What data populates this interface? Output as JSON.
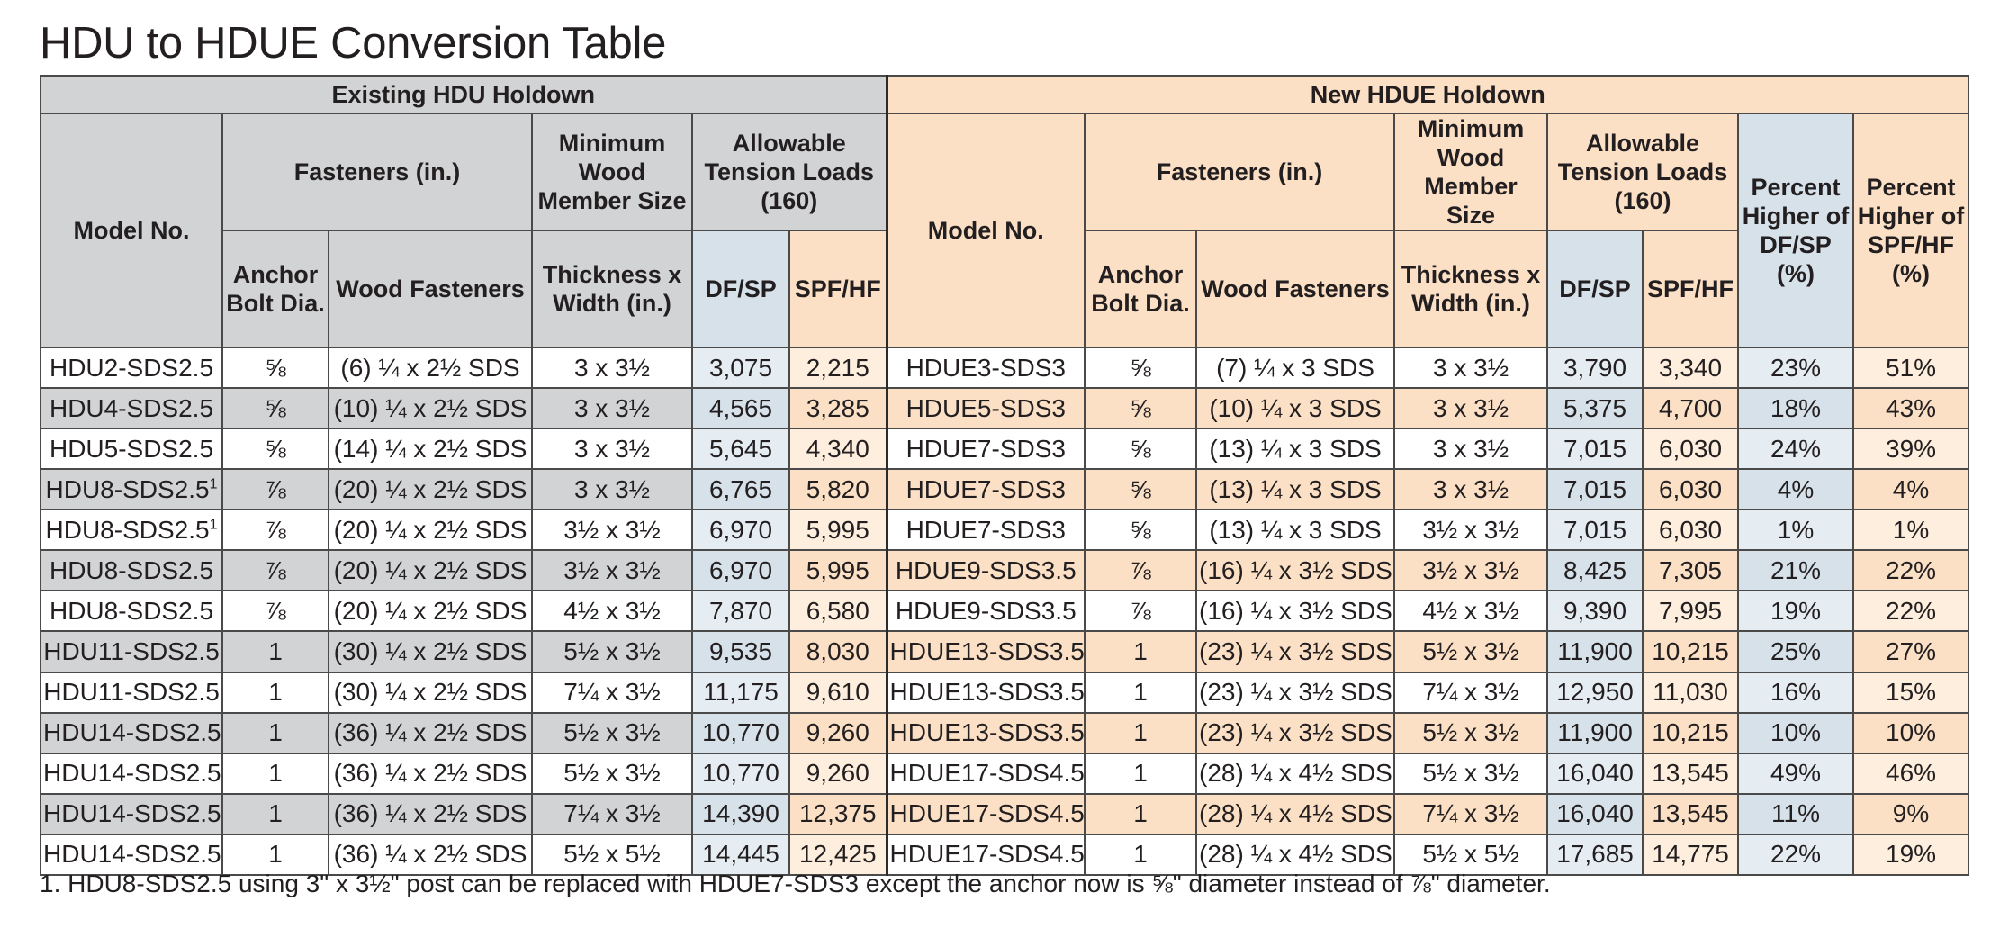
{
  "title": "HDU to HDUE Conversion Table",
  "groups": {
    "existing": "Existing HDU Holdown",
    "new": "New HDUE Holdown"
  },
  "headers": {
    "model_no": "Model No.",
    "fasteners": "Fasteners (in.)",
    "anchor_bolt": "Anchor Bolt Dia.",
    "wood_fasteners": "Wood Fasteners",
    "min_wood_top": "Minimum Wood Member Size",
    "min_wood_bottom": "Thickness x Width (in.)",
    "allowable": "Allowable Tension Loads (160)",
    "dfsp": "DF/SP",
    "spfhf": "SPF/HF",
    "pct_dfsp": "Percent Higher of DF/SP (%)",
    "pct_spfhf": "Percent Higher of SPF/HF (%)"
  },
  "rows": [
    {
      "hdu": "HDU2-SDS2.5",
      "sup": "",
      "bolt": "⅝",
      "fast": "(6) ¼ x 2½ SDS",
      "size": "3 x 3½",
      "df": "3,075",
      "spf": "2,215",
      "hdue": "HDUE3-SDS3",
      "nbolt": "⅝",
      "nfast": "(7) ¼ x 3 SDS",
      "nsize": "3 x 3½",
      "ndf": "3,790",
      "nspf": "3,340",
      "pdf": "23%",
      "pspf": "51%"
    },
    {
      "hdu": "HDU4-SDS2.5",
      "sup": "",
      "bolt": "⅝",
      "fast": "(10) ¼ x 2½ SDS",
      "size": "3 x 3½",
      "df": "4,565",
      "spf": "3,285",
      "hdue": "HDUE5-SDS3",
      "nbolt": "⅝",
      "nfast": "(10) ¼ x 3 SDS",
      "nsize": "3 x 3½",
      "ndf": "5,375",
      "nspf": "4,700",
      "pdf": "18%",
      "pspf": "43%"
    },
    {
      "hdu": "HDU5-SDS2.5",
      "sup": "",
      "bolt": "⅝",
      "fast": "(14) ¼ x 2½ SDS",
      "size": "3 x 3½",
      "df": "5,645",
      "spf": "4,340",
      "hdue": "HDUE7-SDS3",
      "nbolt": "⅝",
      "nfast": "(13) ¼ x 3 SDS",
      "nsize": "3 x 3½",
      "ndf": "7,015",
      "nspf": "6,030",
      "pdf": "24%",
      "pspf": "39%"
    },
    {
      "hdu": "HDU8-SDS2.5",
      "sup": "1",
      "bolt": "⅞",
      "fast": "(20) ¼ x 2½ SDS",
      "size": "3 x 3½",
      "df": "6,765",
      "spf": "5,820",
      "hdue": "HDUE7-SDS3",
      "nbolt": "⅝",
      "nfast": "(13) ¼ x 3 SDS",
      "nsize": "3 x 3½",
      "ndf": "7,015",
      "nspf": "6,030",
      "pdf": "4%",
      "pspf": "4%"
    },
    {
      "hdu": "HDU8-SDS2.5",
      "sup": "1",
      "bolt": "⅞",
      "fast": "(20) ¼ x 2½ SDS",
      "size": "3½ x 3½",
      "df": "6,970",
      "spf": "5,995",
      "hdue": "HDUE7-SDS3",
      "nbolt": "⅝",
      "nfast": "(13) ¼ x 3 SDS",
      "nsize": "3½ x 3½",
      "ndf": "7,015",
      "nspf": "6,030",
      "pdf": "1%",
      "pspf": "1%"
    },
    {
      "hdu": "HDU8-SDS2.5",
      "sup": "",
      "bolt": "⅞",
      "fast": "(20) ¼ x 2½ SDS",
      "size": "3½ x 3½",
      "df": "6,970",
      "spf": "5,995",
      "hdue": "HDUE9-SDS3.5",
      "nbolt": "⅞",
      "nfast": "(16) ¼ x 3½ SDS",
      "nsize": "3½ x 3½",
      "ndf": "8,425",
      "nspf": "7,305",
      "pdf": "21%",
      "pspf": "22%"
    },
    {
      "hdu": "HDU8-SDS2.5",
      "sup": "",
      "bolt": "⅞",
      "fast": "(20) ¼ x 2½ SDS",
      "size": "4½ x 3½",
      "df": "7,870",
      "spf": "6,580",
      "hdue": "HDUE9-SDS3.5",
      "nbolt": "⅞",
      "nfast": "(16) ¼ x 3½ SDS",
      "nsize": "4½ x 3½",
      "ndf": "9,390",
      "nspf": "7,995",
      "pdf": "19%",
      "pspf": "22%"
    },
    {
      "hdu": "HDU11-SDS2.5",
      "sup": "",
      "bolt": "1",
      "fast": "(30) ¼ x 2½ SDS",
      "size": "5½ x 3½",
      "df": "9,535",
      "spf": "8,030",
      "hdue": "HDUE13-SDS3.5",
      "nbolt": "1",
      "nfast": "(23) ¼ x 3½ SDS",
      "nsize": "5½ x 3½",
      "ndf": "11,900",
      "nspf": "10,215",
      "pdf": "25%",
      "pspf": "27%"
    },
    {
      "hdu": "HDU11-SDS2.5",
      "sup": "",
      "bolt": "1",
      "fast": "(30) ¼ x 2½ SDS",
      "size": "7¼ x 3½",
      "df": "11,175",
      "spf": "9,610",
      "hdue": "HDUE13-SDS3.5",
      "nbolt": "1",
      "nfast": "(23) ¼ x 3½ SDS",
      "nsize": "7¼ x 3½",
      "ndf": "12,950",
      "nspf": "11,030",
      "pdf": "16%",
      "pspf": "15%"
    },
    {
      "hdu": "HDU14-SDS2.5",
      "sup": "",
      "bolt": "1",
      "fast": "(36) ¼ x 2½ SDS",
      "size": "5½ x 3½",
      "df": "10,770",
      "spf": "9,260",
      "hdue": "HDUE13-SDS3.5",
      "nbolt": "1",
      "nfast": "(23) ¼ x 3½ SDS",
      "nsize": "5½ x 3½",
      "ndf": "11,900",
      "nspf": "10,215",
      "pdf": "10%",
      "pspf": "10%"
    },
    {
      "hdu": "HDU14-SDS2.5",
      "sup": "",
      "bolt": "1",
      "fast": "(36) ¼ x 2½ SDS",
      "size": "5½ x 3½",
      "df": "10,770",
      "spf": "9,260",
      "hdue": "HDUE17-SDS4.5",
      "nbolt": "1",
      "nfast": "(28) ¼ x 4½ SDS",
      "nsize": "5½ x 3½",
      "ndf": "16,040",
      "nspf": "13,545",
      "pdf": "49%",
      "pspf": "46%"
    },
    {
      "hdu": "HDU14-SDS2.5",
      "sup": "",
      "bolt": "1",
      "fast": "(36) ¼ x 2½ SDS",
      "size": "7¼ x 3½",
      "df": "14,390",
      "spf": "12,375",
      "hdue": "HDUE17-SDS4.5",
      "nbolt": "1",
      "nfast": "(28) ¼ x 4½ SDS",
      "nsize": "7¼ x 3½",
      "ndf": "16,040",
      "nspf": "13,545",
      "pdf": "11%",
      "pspf": "9%"
    },
    {
      "hdu": "HDU14-SDS2.5",
      "sup": "",
      "bolt": "1",
      "fast": "(36) ¼ x 2½ SDS",
      "size": "5½ x 5½",
      "df": "14,445",
      "spf": "12,425",
      "hdue": "HDUE17-SDS4.5",
      "nbolt": "1",
      "nfast": "(28) ¼ x 4½ SDS",
      "nsize": "5½ x 5½",
      "ndf": "17,685",
      "nspf": "14,775",
      "pdf": "22%",
      "pspf": "19%"
    }
  ],
  "footnote": "1. HDU8-SDS2.5 using 3\" x 3½\" post can be replaced with HDUE7-SDS3 except the anchor now is ⅝\" diameter instead of ⅞\" diameter."
}
